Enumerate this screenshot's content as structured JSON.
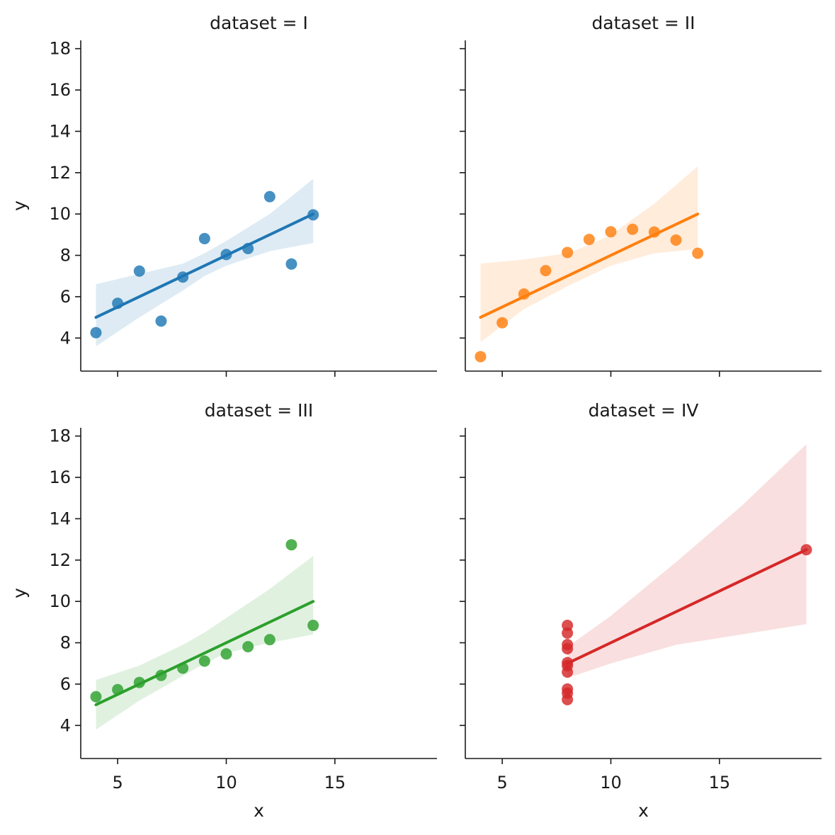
{
  "chart_data": {
    "type": "scatter",
    "layout": "2x2 facet grid, shared x and y axes",
    "xlabel": "x",
    "ylabel": "y",
    "xlim": [
      3.3,
      19.7
    ],
    "ylim": [
      2.4,
      18.4
    ],
    "x_ticks": [
      5,
      10,
      15
    ],
    "y_ticks": [
      4,
      6,
      8,
      10,
      12,
      14,
      16,
      18
    ],
    "grid": false,
    "legend": "none",
    "panels": [
      {
        "title": "dataset = I",
        "color": "#1f77b4",
        "x": [
          10,
          8,
          13,
          9,
          11,
          14,
          6,
          4,
          12,
          7,
          5
        ],
        "y": [
          8.04,
          6.95,
          7.58,
          8.81,
          8.33,
          9.96,
          7.24,
          4.26,
          10.84,
          4.82,
          5.68
        ],
        "fit": {
          "x0": 4,
          "y0": 5.0,
          "x1": 14,
          "y1": 10.0
        },
        "ci_lower": [
          [
            4,
            3.6
          ],
          [
            6,
            5.0
          ],
          [
            8,
            6.3
          ],
          [
            9,
            7.0
          ],
          [
            10,
            7.5
          ],
          [
            12,
            8.2
          ],
          [
            14,
            8.6
          ]
        ],
        "ci_upper": [
          [
            4,
            6.6
          ],
          [
            6,
            7.1
          ],
          [
            8,
            7.6
          ],
          [
            9,
            8.1
          ],
          [
            10,
            8.7
          ],
          [
            12,
            10.0
          ],
          [
            14,
            11.7
          ]
        ]
      },
      {
        "title": "dataset = II",
        "color": "#ff7f0e",
        "x": [
          10,
          8,
          13,
          9,
          11,
          14,
          6,
          4,
          12,
          7,
          5
        ],
        "y": [
          9.14,
          8.14,
          8.74,
          8.77,
          9.26,
          8.1,
          6.13,
          3.1,
          9.13,
          7.26,
          4.74
        ],
        "fit": {
          "x0": 4,
          "y0": 5.0,
          "x1": 14,
          "y1": 10.0
        },
        "ci_lower": [
          [
            4,
            3.8
          ],
          [
            6,
            5.4
          ],
          [
            8,
            6.5
          ],
          [
            9,
            7.0
          ],
          [
            10,
            7.5
          ],
          [
            12,
            8.1
          ],
          [
            14,
            8.3
          ]
        ],
        "ci_upper": [
          [
            4,
            7.6
          ],
          [
            6,
            7.8
          ],
          [
            8,
            8.1
          ],
          [
            9,
            8.5
          ],
          [
            10,
            9.0
          ],
          [
            12,
            10.5
          ],
          [
            14,
            12.3
          ]
        ]
      },
      {
        "title": "dataset = III",
        "color": "#2ca02c",
        "x": [
          10,
          8,
          13,
          9,
          11,
          14,
          6,
          4,
          12,
          7,
          5
        ],
        "y": [
          7.46,
          6.77,
          12.74,
          7.11,
          7.81,
          8.84,
          6.08,
          5.39,
          8.15,
          6.42,
          5.73
        ],
        "fit": {
          "x0": 4,
          "y0": 5.0,
          "x1": 14,
          "y1": 10.0
        },
        "ci_lower": [
          [
            4,
            3.8
          ],
          [
            6,
            5.2
          ],
          [
            8,
            6.4
          ],
          [
            9,
            7.0
          ],
          [
            10,
            7.5
          ],
          [
            12,
            8.0
          ],
          [
            14,
            8.4
          ]
        ],
        "ci_upper": [
          [
            4,
            6.2
          ],
          [
            6,
            6.9
          ],
          [
            8,
            7.9
          ],
          [
            9,
            8.5
          ],
          [
            10,
            9.2
          ],
          [
            12,
            10.6
          ],
          [
            14,
            12.2
          ]
        ]
      },
      {
        "title": "dataset = IV",
        "color": "#d62728",
        "x": [
          8,
          8,
          8,
          8,
          8,
          8,
          8,
          19,
          8,
          8,
          8
        ],
        "y": [
          6.58,
          5.76,
          7.71,
          8.84,
          8.47,
          7.04,
          5.25,
          12.5,
          5.56,
          7.91,
          6.89
        ],
        "fit": {
          "x0": 8,
          "y0": 7.0,
          "x1": 19,
          "y1": 12.5
        },
        "ci_lower": [
          [
            8,
            6.3
          ],
          [
            10,
            7.0
          ],
          [
            13,
            7.9
          ],
          [
            16,
            8.4
          ],
          [
            19,
            8.9
          ]
        ],
        "ci_upper": [
          [
            8,
            7.8
          ],
          [
            10,
            9.3
          ],
          [
            13,
            11.9
          ],
          [
            16,
            14.6
          ],
          [
            19,
            17.6
          ]
        ]
      }
    ]
  }
}
